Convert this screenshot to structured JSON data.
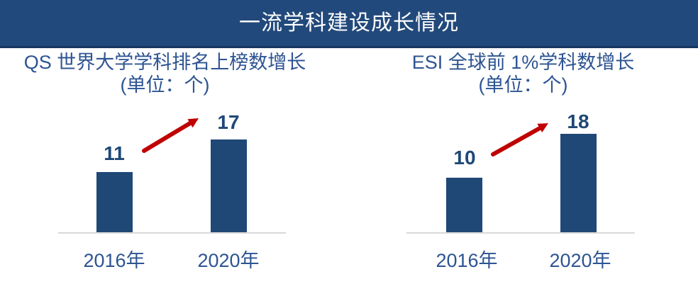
{
  "banner": {
    "title": "一流学科建设成长情况"
  },
  "chart_data": [
    {
      "type": "bar",
      "title": "QS 世界大学学科排名上榜数增长",
      "subtitle": "(单位：个)",
      "categories": [
        "2016年",
        "2020年"
      ],
      "values": [
        11,
        17
      ],
      "xlabel": "",
      "ylabel": "",
      "ylim": [
        0,
        20
      ],
      "grid": false,
      "legend": false,
      "bar_color": "#1F4877",
      "annotations": [
        {
          "type": "arrow",
          "direction": "up-right",
          "color": "#C00000"
        }
      ]
    },
    {
      "type": "bar",
      "title": "ESI 全球前 1%学科数增长",
      "subtitle": "(单位：个)",
      "categories": [
        "2016年",
        "2020年"
      ],
      "values": [
        10,
        18
      ],
      "xlabel": "",
      "ylabel": "",
      "ylim": [
        0,
        20
      ],
      "grid": false,
      "legend": false,
      "bar_color": "#1F4877",
      "annotations": [
        {
          "type": "arrow",
          "direction": "up-right",
          "color": "#C00000"
        }
      ]
    }
  ],
  "colors": {
    "banner_bg": "#22497B",
    "banner_border": "#16365F",
    "banner_text": "#FFFFFF",
    "bar_navy": "#1F4877",
    "label_blue": "#2D5492",
    "value_navy": "#1F4877",
    "arrow_red": "#C00000",
    "axis_gray": "#D9D9D9"
  }
}
